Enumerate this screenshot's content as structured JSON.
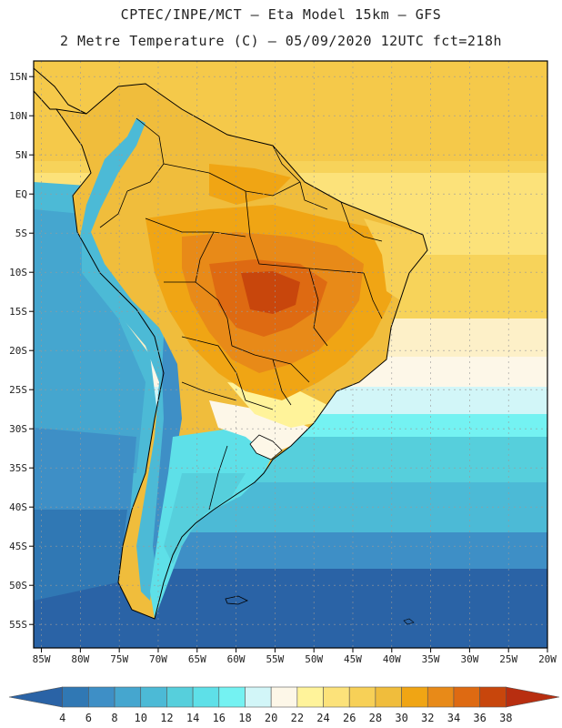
{
  "header": {
    "line1": "CPTEC/INPE/MCT –  Eta Model 15km – GFS",
    "line2": "2 Metre Temperature (C) – 05/09/2020 12UTC fct=218h"
  },
  "map": {
    "lat_labels": [
      "15N",
      "10N",
      "5N",
      "EQ",
      "5S",
      "10S",
      "15S",
      "20S",
      "25S",
      "30S",
      "35S",
      "40S",
      "45S",
      "50S",
      "55S"
    ],
    "lon_labels": [
      "85W",
      "80W",
      "75W",
      "70W",
      "65W",
      "60W",
      "55W",
      "50W",
      "45W",
      "40W",
      "35W",
      "30W",
      "25W",
      "20W"
    ],
    "lat_range": [
      17,
      -58
    ],
    "lon_range": [
      -86,
      -20
    ]
  },
  "colorbar": {
    "levels": [
      "4",
      "6",
      "8",
      "10",
      "12",
      "14",
      "16",
      "18",
      "20",
      "22",
      "24",
      "26",
      "28",
      "30",
      "32",
      "34",
      "36",
      "38"
    ],
    "colors": [
      "#2a63a6",
      "#3078b4",
      "#3e8fc6",
      "#45a6cf",
      "#4cbad6",
      "#56cfdc",
      "#5ee0e8",
      "#74f2f2",
      "#d2f6f8",
      "#fdf7e8",
      "#fff39a",
      "#fce27a",
      "#f7d057",
      "#f0bd3c",
      "#f0a514",
      "#e88a18",
      "#de6a12",
      "#c8460c",
      "#b82e10"
    ]
  }
}
